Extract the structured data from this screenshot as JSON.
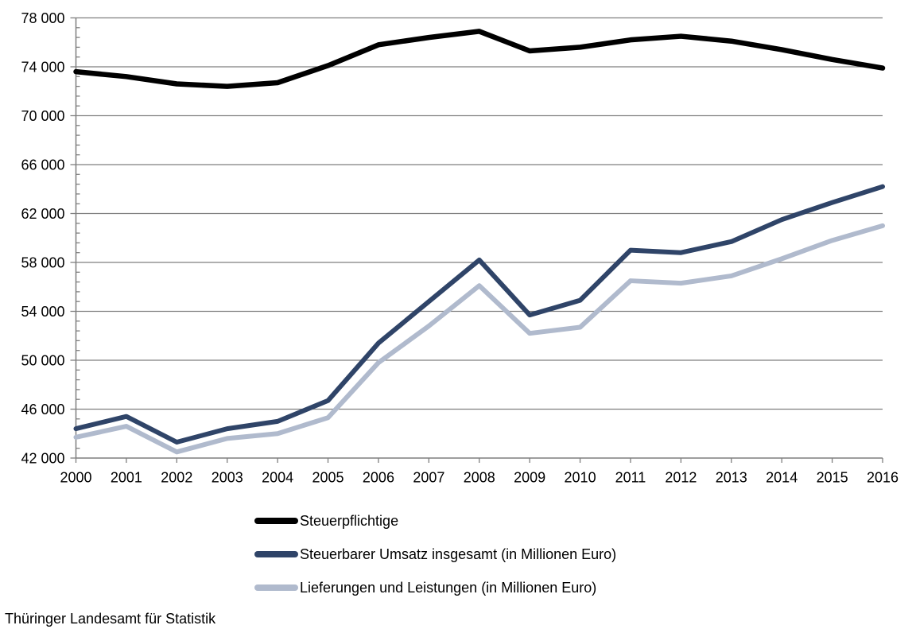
{
  "source": "Thüringer Landesamt für Statistik",
  "chart_data": {
    "type": "line",
    "title": "",
    "xlabel": "",
    "ylabel": "",
    "categories": [
      "2000",
      "2001",
      "2002",
      "2003",
      "2004",
      "2005",
      "2006",
      "2007",
      "2008",
      "2009",
      "2010",
      "2011",
      "2012",
      "2013",
      "2014",
      "2015",
      "2016"
    ],
    "series": [
      {
        "name": "Steuerpflichtige",
        "color": "#000000",
        "values": [
          73600,
          73200,
          72600,
          72400,
          72700,
          74100,
          75800,
          76400,
          76900,
          75300,
          75600,
          76200,
          76500,
          76100,
          75400,
          74600,
          73900
        ]
      },
      {
        "name": "Steuerbarer Umsatz insgesamt (in Millionen Euro)",
        "color": "#2F4468",
        "values": [
          44400,
          45400,
          43300,
          44400,
          45000,
          46700,
          51400,
          54800,
          58200,
          53700,
          54900,
          59000,
          58800,
          59700,
          61500,
          62900,
          64200
        ]
      },
      {
        "name": "Lieferungen und Leistungen (in Millionen Euro)",
        "color": "#B0BACD",
        "values": [
          43700,
          44600,
          42500,
          43600,
          44000,
          45300,
          49800,
          52800,
          56100,
          52200,
          52700,
          56500,
          56300,
          56900,
          58300,
          59800,
          61000
        ]
      }
    ],
    "ylim": [
      42000,
      78000
    ],
    "y_major_step": 4000,
    "y_minor_step": 800,
    "y_tick_labels": [
      "42 000",
      "46 000",
      "50 000",
      "54 000",
      "58 000",
      "62 000",
      "66 000",
      "70 000",
      "74 000",
      "78 000"
    ],
    "grid": "horizontal-major",
    "grid_color": "#7F7F7F",
    "axis_color": "#7F7F7F",
    "text_color": "#000000",
    "background": "#FFFFFF",
    "legend_position": "bottom-left"
  }
}
